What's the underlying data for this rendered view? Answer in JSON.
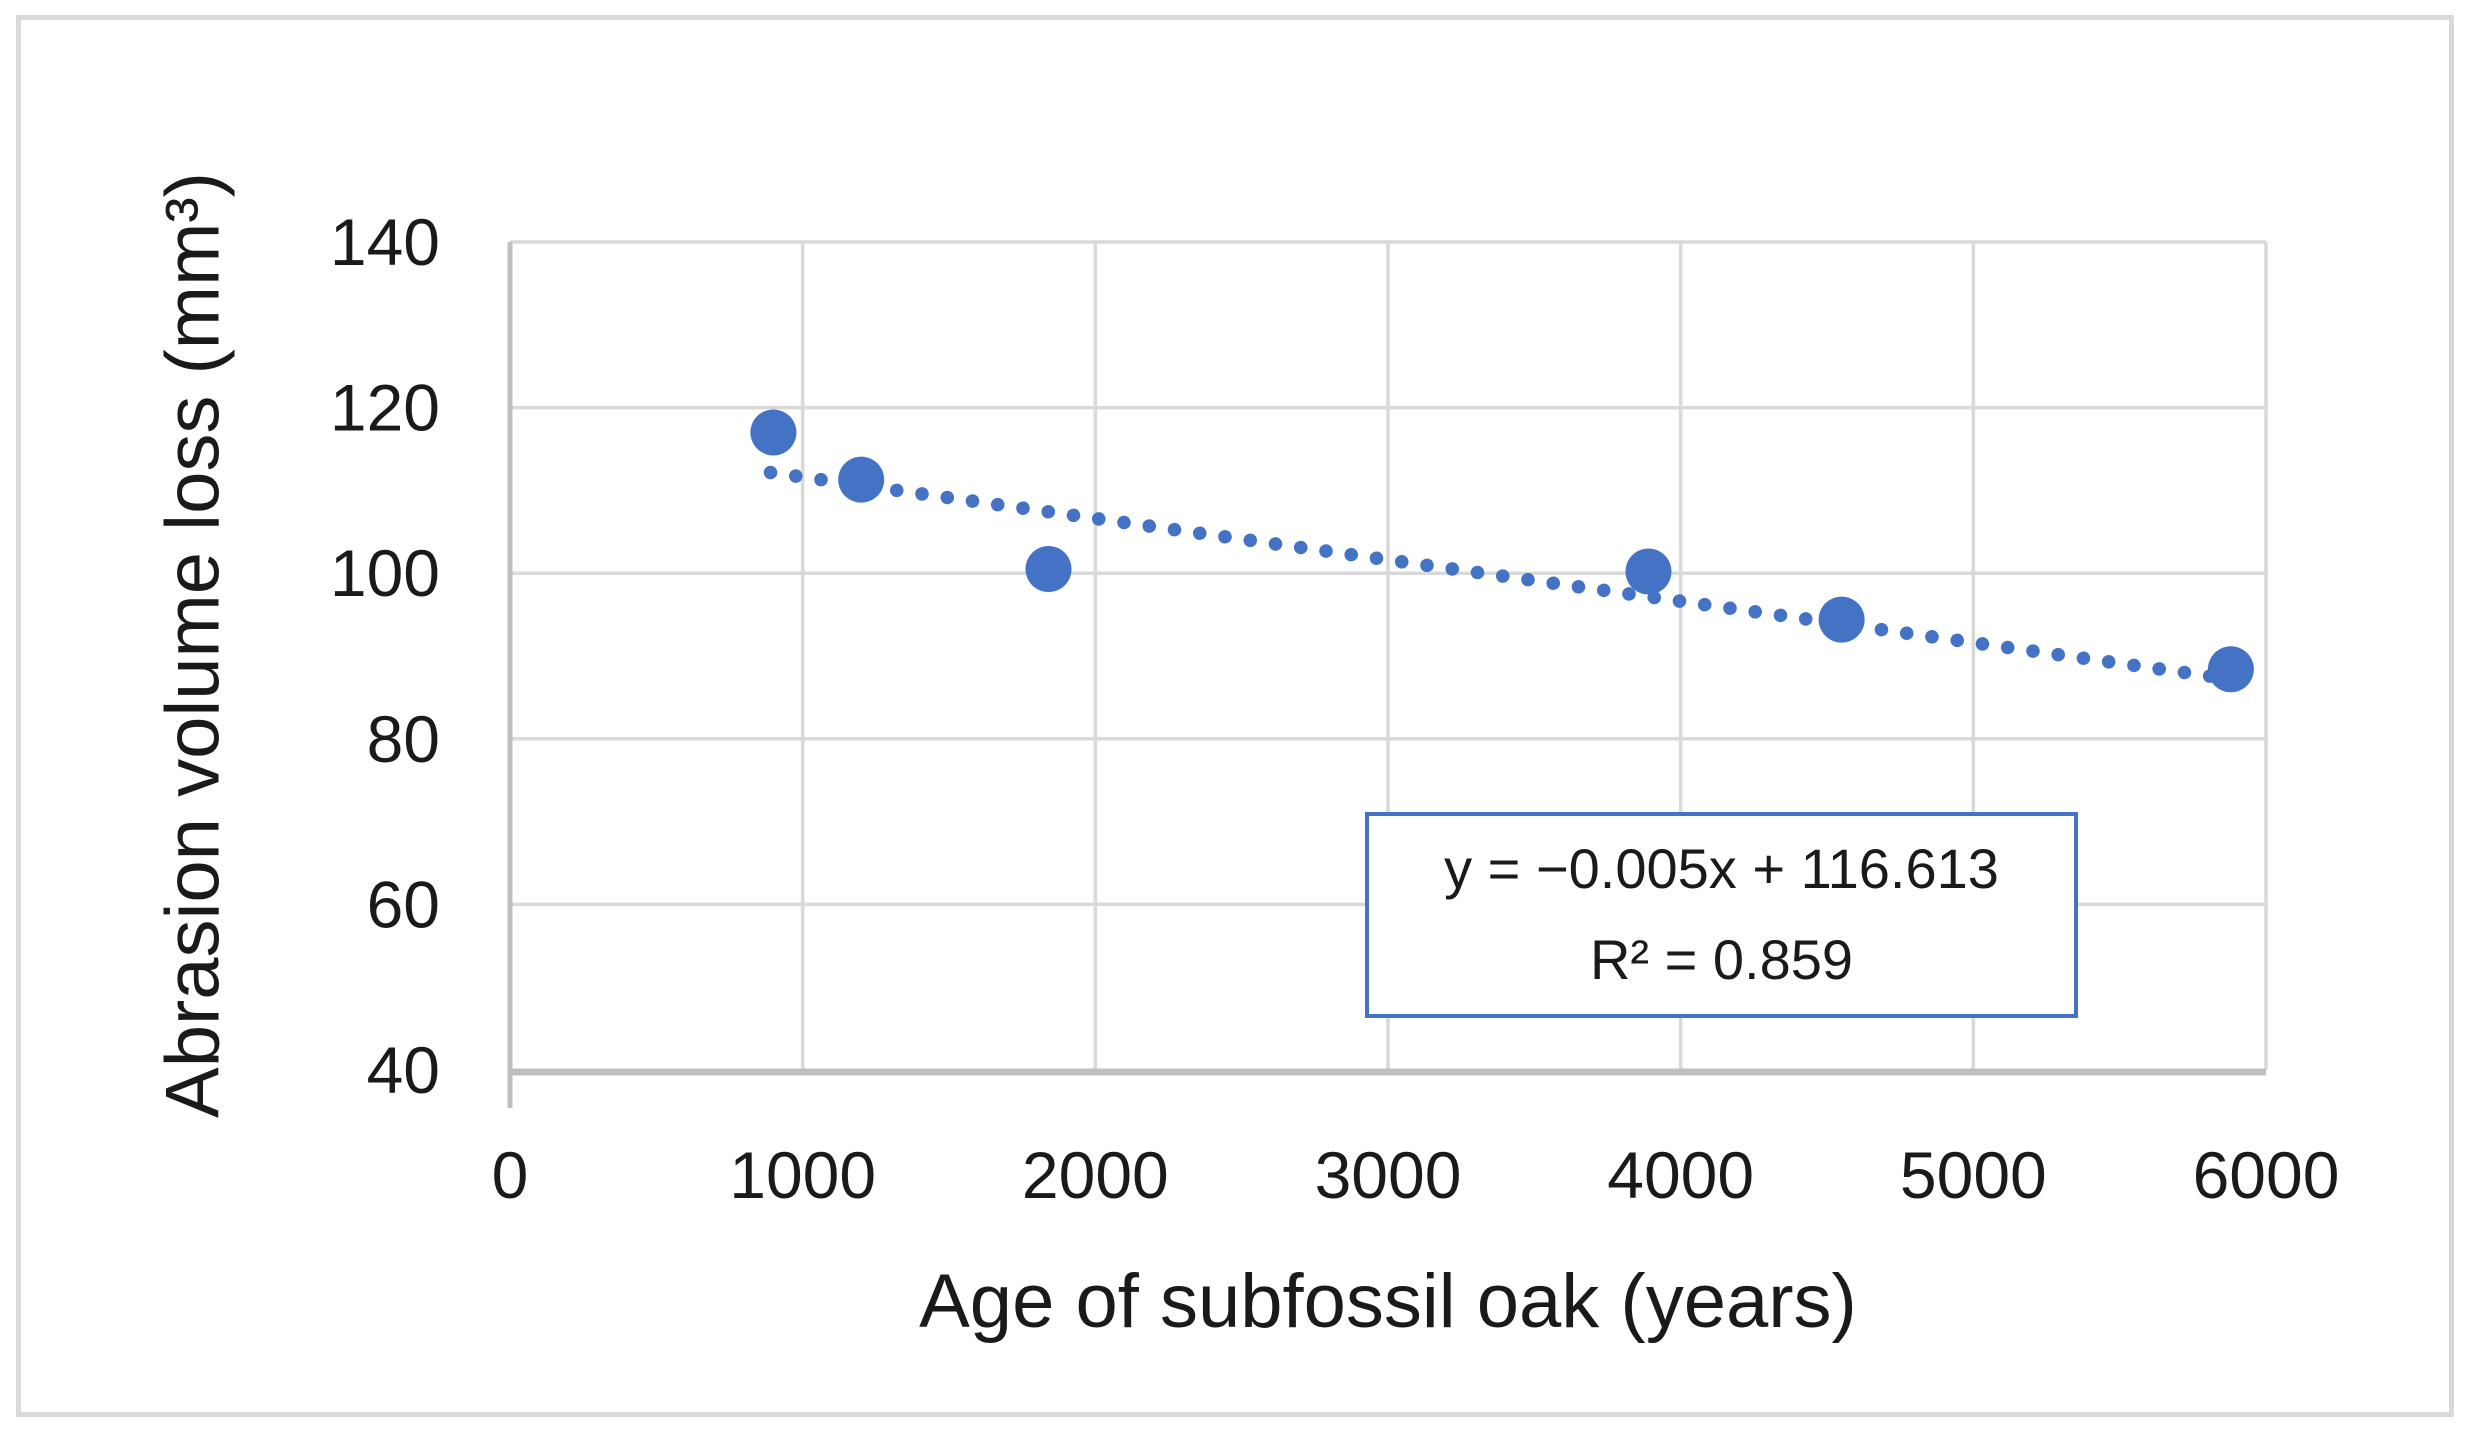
{
  "figure": {
    "background": "#FFFFFF",
    "border_color": "#D9D9D9"
  },
  "chart_data": {
    "type": "scatter",
    "title": "",
    "xlabel": "Age of subfossil oak (years)",
    "ylabel": "Abrasion volume loss (mm³)",
    "xlim": [
      0,
      6000
    ],
    "ylim": [
      40,
      140
    ],
    "x_ticks": [
      "0",
      "1000",
      "2000",
      "3000",
      "4000",
      "5000",
      "6000"
    ],
    "y_ticks": [
      "40",
      "60",
      "80",
      "100",
      "120",
      "140"
    ],
    "grid": true,
    "legend_position": "none",
    "series": [
      {
        "name": "abrasion-volume-loss",
        "marker_color": "#4472C4",
        "marker_radius_px": 23,
        "points": [
          {
            "x": 900,
            "y": 117.0
          },
          {
            "x": 1200,
            "y": 111.3
          },
          {
            "x": 1840,
            "y": 100.5
          },
          {
            "x": 3890,
            "y": 100.2
          },
          {
            "x": 4550,
            "y": 94.4
          },
          {
            "x": 5880,
            "y": 88.4
          }
        ]
      }
    ],
    "trendline": {
      "style": "dotted",
      "color": "#4472C4",
      "slope": -0.005,
      "intercept": 116.613,
      "x_start": 890,
      "x_end": 5920
    },
    "annotation": {
      "equation": "y = −0.005x + 116.613",
      "r_squared": "R² = 0.859",
      "border_color": "#4472C4"
    },
    "colors": {
      "gridline": "#D9D9D9",
      "axis_line": "#BFBFBF",
      "text": "#1A1A1A",
      "marker": "#4472C4"
    }
  }
}
